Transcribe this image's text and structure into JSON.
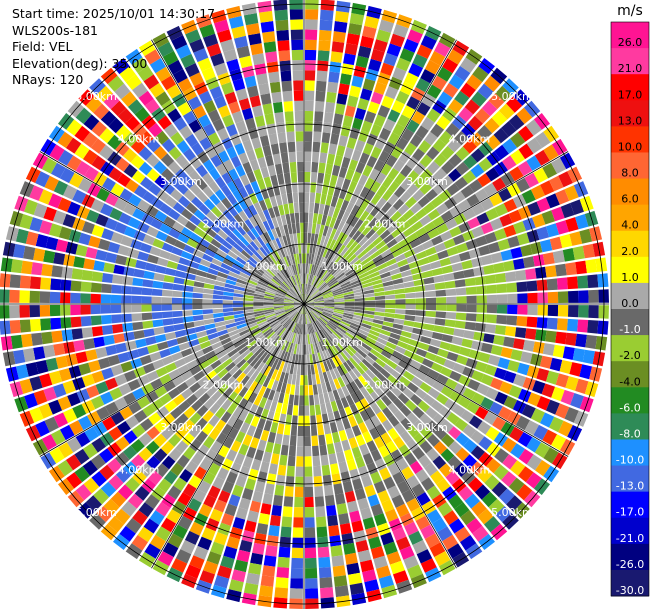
{
  "header": {
    "start_time": "Start time: 2025/10/01 14:30:17",
    "instrument": "WLS200s-181",
    "field": "Field: VEL",
    "elevation": "Elevation(deg): 35.00",
    "nrays": "NRays: 120"
  },
  "range_labels": [
    "1.00km",
    "2.00km",
    "3.00km",
    "4.00km",
    "5.00km"
  ],
  "colorbar": {
    "unit": "m/s",
    "ticks": [
      "26.0",
      "21.0",
      "17.0",
      "13.0",
      "10.0",
      "8.0",
      "6.0",
      "4.0",
      "2.0",
      "1.0",
      "0.0",
      "-1.0",
      "-2.0",
      "-4.0",
      "-6.0",
      "-8.0",
      "-10.0",
      "-13.0",
      "-17.0",
      "-21.0",
      "-26.0",
      "-30.0"
    ],
    "colors": [
      "#ff1493",
      "#ff3aa0",
      "#ff0000",
      "#ee1010",
      "#ff3300",
      "#ff6633",
      "#ff8c00",
      "#ffa500",
      "#ffd700",
      "#ffff00",
      "#a9a9a9",
      "#696969",
      "#9acd32",
      "#6b8e23",
      "#228b22",
      "#2e8b57",
      "#1e90ff",
      "#4169e1",
      "#0000ff",
      "#0000cd",
      "#000080",
      "#191970"
    ]
  }
}
